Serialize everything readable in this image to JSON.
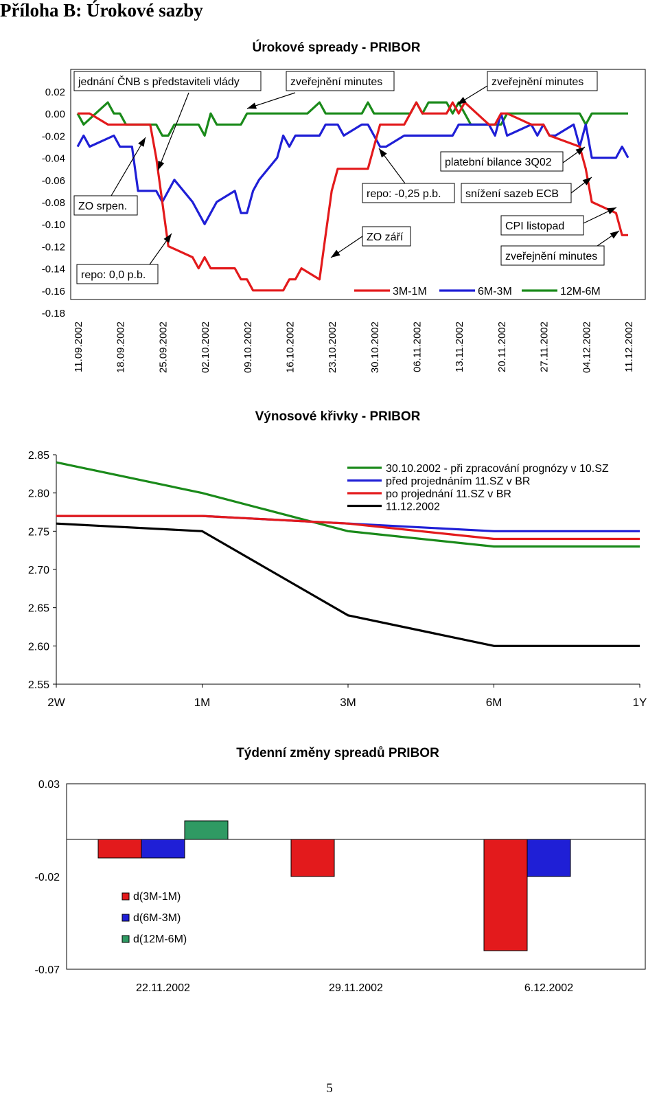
{
  "page": {
    "heading": "Příloha B: Úrokové sazby",
    "page_number": "5"
  },
  "chart_data": [
    {
      "type": "line",
      "title": "Úrokové spready - PRIBOR",
      "ylim": [
        -0.18,
        0.02
      ],
      "yticks": [
        "0.02",
        "0.00",
        "-0.02",
        "-0.04",
        "-0.06",
        "-0.08",
        "-0.10",
        "-0.12",
        "-0.14",
        "-0.16",
        "-0.18"
      ],
      "x_start": "11.09.2002",
      "x_end": "11.12.2002",
      "xticks": [
        "11.09.2002",
        "18.09.2002",
        "25.09.2002",
        "02.10.2002",
        "09.10.2002",
        "16.10.2002",
        "23.10.2002",
        "30.10.2002",
        "06.11.2002",
        "13.11.2002",
        "20.11.2002",
        "27.11.2002",
        "04.12.2002",
        "11.12.2002"
      ],
      "grid": false,
      "legend_position": "bottom-right, inside",
      "series": [
        {
          "name": "3M-1M",
          "color": "#e31a1c",
          "points": [
            [
              "11.09.2002",
              0
            ],
            [
              "13.09.2002",
              0
            ],
            [
              "16.09.2002",
              -0.01
            ],
            [
              "23.09.2002",
              -0.01
            ],
            [
              "24.09.2002",
              -0.04
            ],
            [
              "25.09.2002",
              -0.08
            ],
            [
              "26.09.2002",
              -0.12
            ],
            [
              "30.09.2002",
              -0.13
            ],
            [
              "01.10.2002",
              -0.14
            ],
            [
              "02.10.2002",
              -0.13
            ],
            [
              "03.10.2002",
              -0.14
            ],
            [
              "07.10.2002",
              -0.14
            ],
            [
              "08.10.2002",
              -0.15
            ],
            [
              "09.10.2002",
              -0.15
            ],
            [
              "10.10.2002",
              -0.16
            ],
            [
              "15.10.2002",
              -0.16
            ],
            [
              "16.10.2002",
              -0.15
            ],
            [
              "17.10.2002",
              -0.15
            ],
            [
              "18.10.2002",
              -0.14
            ],
            [
              "21.10.2002",
              -0.15
            ],
            [
              "22.10.2002",
              -0.11
            ],
            [
              "23.10.2002",
              -0.07
            ],
            [
              "24.10.2002",
              -0.05
            ],
            [
              "29.10.2002",
              -0.05
            ],
            [
              "30.10.2002",
              -0.03
            ],
            [
              "31.10.2002",
              -0.01
            ],
            [
              "04.11.2002",
              -0.01
            ],
            [
              "05.11.2002",
              0
            ],
            [
              "06.11.2002",
              0.01
            ],
            [
              "07.11.2002",
              0
            ],
            [
              "11.11.2002",
              0
            ],
            [
              "12.11.2002",
              0.01
            ],
            [
              "13.11.2002",
              0
            ],
            [
              "14.11.2002",
              0.01
            ],
            [
              "18.11.2002",
              -0.01
            ],
            [
              "19.11.2002",
              -0.01
            ],
            [
              "20.11.2002",
              0
            ],
            [
              "21.11.2002",
              0
            ],
            [
              "25.11.2002",
              -0.01
            ],
            [
              "27.11.2002",
              -0.01
            ],
            [
              "28.11.2002",
              -0.02
            ],
            [
              "03.12.2002",
              -0.03
            ],
            [
              "04.12.2002",
              -0.05
            ],
            [
              "05.12.2002",
              -0.08
            ],
            [
              "09.12.2002",
              -0.09
            ],
            [
              "10.12.2002",
              -0.11
            ],
            [
              "11.12.2002",
              -0.11
            ]
          ]
        },
        {
          "name": "6M-3M",
          "color": "#1f1fd6",
          "points": [
            [
              "11.09.2002",
              -0.03
            ],
            [
              "12.09.2002",
              -0.02
            ],
            [
              "13.09.2002",
              -0.03
            ],
            [
              "17.09.2002",
              -0.02
            ],
            [
              "18.09.2002",
              -0.03
            ],
            [
              "20.09.2002",
              -0.03
            ],
            [
              "21.09.2002",
              -0.07
            ],
            [
              "24.09.2002",
              -0.07
            ],
            [
              "25.09.2002",
              -0.08
            ],
            [
              "26.09.2002",
              -0.07
            ],
            [
              "27.09.2002",
              -0.06
            ],
            [
              "30.09.2002",
              -0.08
            ],
            [
              "02.10.2002",
              -0.1
            ],
            [
              "04.10.2002",
              -0.08
            ],
            [
              "07.10.2002",
              -0.07
            ],
            [
              "08.10.2002",
              -0.09
            ],
            [
              "09.10.2002",
              -0.09
            ],
            [
              "10.10.2002",
              -0.07
            ],
            [
              "11.10.2002",
              -0.06
            ],
            [
              "14.10.2002",
              -0.04
            ],
            [
              "15.10.2002",
              -0.02
            ],
            [
              "16.10.2002",
              -0.03
            ],
            [
              "17.10.2002",
              -0.02
            ],
            [
              "21.10.2002",
              -0.02
            ],
            [
              "22.10.2002",
              -0.01
            ],
            [
              "24.10.2002",
              -0.01
            ],
            [
              "25.10.2002",
              -0.02
            ],
            [
              "28.10.2002",
              -0.01
            ],
            [
              "29.10.2002",
              -0.01
            ],
            [
              "31.10.2002",
              -0.03
            ],
            [
              "01.11.2002",
              -0.03
            ],
            [
              "04.11.2002",
              -0.02
            ],
            [
              "12.11.2002",
              -0.02
            ],
            [
              "13.11.2002",
              -0.01
            ],
            [
              "18.11.2002",
              -0.01
            ],
            [
              "19.11.2002",
              -0.02
            ],
            [
              "20.11.2002",
              0
            ],
            [
              "21.11.2002",
              -0.02
            ],
            [
              "25.11.2002",
              -0.01
            ],
            [
              "26.11.2002",
              -0.02
            ],
            [
              "27.11.2002",
              -0.01
            ],
            [
              "28.11.2002",
              -0.02
            ],
            [
              "29.11.2002",
              -0.02
            ],
            [
              "02.12.2002",
              -0.01
            ],
            [
              "03.12.2002",
              -0.03
            ],
            [
              "04.12.2002",
              -0.01
            ],
            [
              "05.12.2002",
              -0.04
            ],
            [
              "09.12.2002",
              -0.04
            ],
            [
              "10.12.2002",
              -0.03
            ],
            [
              "11.12.2002",
              -0.04
            ]
          ]
        },
        {
          "name": "12M-6M",
          "color": "#1a8a1a",
          "points": [
            [
              "11.09.2002",
              0
            ],
            [
              "12.09.2002",
              -0.01
            ],
            [
              "14.09.2002",
              0
            ],
            [
              "16.09.2002",
              0.01
            ],
            [
              "17.09.2002",
              0
            ],
            [
              "18.09.2002",
              0
            ],
            [
              "19.09.2002",
              -0.01
            ],
            [
              "24.09.2002",
              -0.01
            ],
            [
              "25.09.2002",
              -0.02
            ],
            [
              "26.09.2002",
              -0.02
            ],
            [
              "27.09.2002",
              -0.01
            ],
            [
              "01.10.2002",
              -0.01
            ],
            [
              "02.10.2002",
              -0.02
            ],
            [
              "03.10.2002",
              0
            ],
            [
              "04.10.2002",
              -0.01
            ],
            [
              "08.10.2002",
              -0.01
            ],
            [
              "09.10.2002",
              0
            ],
            [
              "19.10.2002",
              0
            ],
            [
              "21.10.2002",
              0.01
            ],
            [
              "22.10.2002",
              0
            ],
            [
              "28.10.2002",
              0
            ],
            [
              "29.10.2002",
              0.01
            ],
            [
              "30.10.2002",
              0
            ],
            [
              "05.11.2002",
              0
            ],
            [
              "06.11.2002",
              0.01
            ],
            [
              "07.11.2002",
              0
            ],
            [
              "08.11.2002",
              0.01
            ],
            [
              "11.11.2002",
              0.01
            ],
            [
              "12.11.2002",
              0
            ],
            [
              "13.11.2002",
              0.01
            ],
            [
              "14.11.2002",
              0
            ],
            [
              "15.11.2002",
              -0.01
            ],
            [
              "20.11.2002",
              -0.01
            ],
            [
              "21.11.2002",
              0
            ],
            [
              "03.12.2002",
              0
            ],
            [
              "04.12.2002",
              -0.01
            ],
            [
              "05.12.2002",
              0
            ],
            [
              "11.12.2002",
              0
            ]
          ]
        }
      ],
      "annotations": [
        "jednání ČNB s představiteli vlády",
        "zveřejnění minutes",
        "zveřejnění minutes",
        "ZO srpen.",
        "repo: 0,0 p.b.",
        "platební bilance 3Q02",
        "repo: -0,25 p.b.",
        "snížení sazeb ECB",
        "ZO září",
        "CPI listopad",
        "zveřejnění minutes"
      ]
    },
    {
      "type": "line",
      "title": "Výnosové křivky - PRIBOR",
      "categories": [
        "2W",
        "1M",
        "3M",
        "6M",
        "1Y"
      ],
      "ylim": [
        2.55,
        2.85
      ],
      "yticks": [
        "2.85",
        "2.80",
        "2.75",
        "2.70",
        "2.65",
        "2.60",
        "2.55"
      ],
      "grid": false,
      "legend_position": "top-right, inside",
      "series": [
        {
          "name": "30.10.2002 - při zpracování prognózy v 10.SZ",
          "color": "#1a8a1a",
          "values": [
            2.84,
            2.8,
            2.75,
            2.73,
            2.73
          ]
        },
        {
          "name": "před projednáním 11.SZ v BR",
          "color": "#1f1fd6",
          "values": [
            2.77,
            2.77,
            2.76,
            2.75,
            2.75
          ]
        },
        {
          "name": "po projednání 11.SZ v BR",
          "color": "#e31a1c",
          "values": [
            2.77,
            2.77,
            2.76,
            2.74,
            2.74
          ]
        },
        {
          "name": "11.12.2002",
          "color": "#000000",
          "values": [
            2.76,
            2.75,
            2.64,
            2.6,
            2.6
          ]
        }
      ]
    },
    {
      "type": "bar",
      "title": "Týdenní změny spreadů PRIBOR",
      "categories": [
        "22.11.2002",
        "29.11.2002",
        "6.12.2002"
      ],
      "ylim": [
        -0.07,
        0.03
      ],
      "yticks": [
        "0.03",
        "-0.02",
        "-0.07"
      ],
      "grid": false,
      "legend_position": "left, inside",
      "series": [
        {
          "name": "d(3M-1M)",
          "color": "#e31a1c",
          "values": [
            -0.01,
            -0.02,
            -0.06
          ]
        },
        {
          "name": "d(6M-3M)",
          "color": "#1f1fd6",
          "values": [
            -0.01,
            0,
            -0.02
          ]
        },
        {
          "name": "d(12M-6M)",
          "color": "#2f9a63",
          "values": [
            0.01,
            0,
            0
          ]
        }
      ]
    }
  ]
}
